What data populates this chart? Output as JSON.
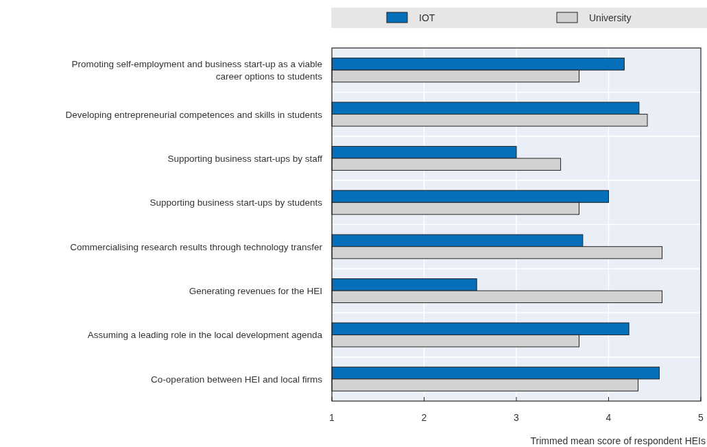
{
  "chart_data": {
    "type": "bar",
    "orientation": "horizontal",
    "xlabel": "Trimmed mean score of respondent HEIs",
    "categories": [
      "Promoting self-employment and business start-up as a viable career options to students",
      "Developing entrepreneurial competences and skills in students",
      "Supporting business start-ups by staff",
      "Supporting business start-ups by students",
      "Commercialising research results through technology transfer",
      "Generating revenues for the HEI",
      "Assuming a leading role in the local development agenda",
      "Co-operation between HEI and local firms"
    ],
    "series": [
      {
        "name": "IOT",
        "color": "#066fba",
        "values": [
          4.17,
          4.33,
          3.0,
          4.0,
          3.72,
          2.57,
          4.22,
          4.55
        ]
      },
      {
        "name": "University",
        "color": "#d2d2d2",
        "values": [
          3.68,
          4.42,
          3.48,
          3.68,
          4.58,
          4.58,
          3.68,
          4.32
        ]
      }
    ],
    "xlim": [
      1,
      5
    ],
    "xticks": [
      1,
      2,
      3,
      4,
      5
    ],
    "grid": true,
    "legend": "top"
  }
}
